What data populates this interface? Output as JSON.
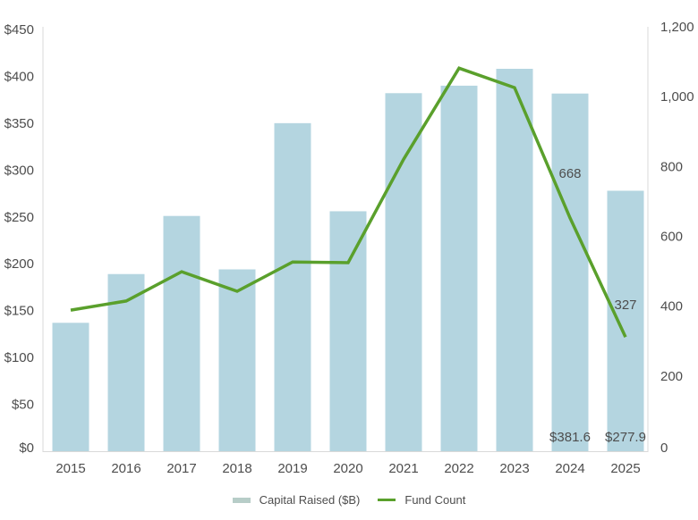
{
  "chart_data": {
    "type": "bar+line",
    "title": "",
    "categories": [
      "2015",
      "2016",
      "2017",
      "2018",
      "2019",
      "2020",
      "2021",
      "2022",
      "2023",
      "2024",
      "2025"
    ],
    "series": [
      {
        "name": "Capital Raised ($B)",
        "type": "bar",
        "axis": "left",
        "color": "#b4d5e0",
        "values": [
          137,
          189,
          251,
          194,
          350,
          256,
          382,
          390,
          408,
          381.6,
          277.9
        ]
      },
      {
        "name": "Fund Count",
        "type": "line",
        "axis": "right",
        "color": "#5aa02c",
        "values": [
          404,
          430,
          514,
          458,
          542,
          540,
          836,
          1097,
          1041,
          668,
          327
        ]
      }
    ],
    "left_axis": {
      "ticks": [
        "$0",
        "$50",
        "$100",
        "$150",
        "$200",
        "$250",
        "$300",
        "$350",
        "$400",
        "$450"
      ],
      "min": 0,
      "max": 450
    },
    "right_axis": {
      "ticks": [
        "0",
        "200",
        "400",
        "600",
        "800",
        "1,000",
        "1,200"
      ],
      "min": 0,
      "max": 1200
    },
    "data_labels": [
      {
        "series": "Capital Raised ($B)",
        "category": "2024",
        "text": "$381.6"
      },
      {
        "series": "Capital Raised ($B)",
        "category": "2025",
        "text": "$277.9"
      },
      {
        "series": "Fund Count",
        "category": "2024",
        "text": "668"
      },
      {
        "series": "Fund Count",
        "category": "2025",
        "text": "327"
      }
    ],
    "legend": {
      "position": "bottom",
      "items": [
        "Capital Raised ($B)",
        "Fund Count"
      ]
    },
    "grid": false,
    "xlabel": "",
    "ylabel": ""
  },
  "legend": {
    "bar_label": "Capital Raised ($B)",
    "line_label": "Fund Count"
  }
}
